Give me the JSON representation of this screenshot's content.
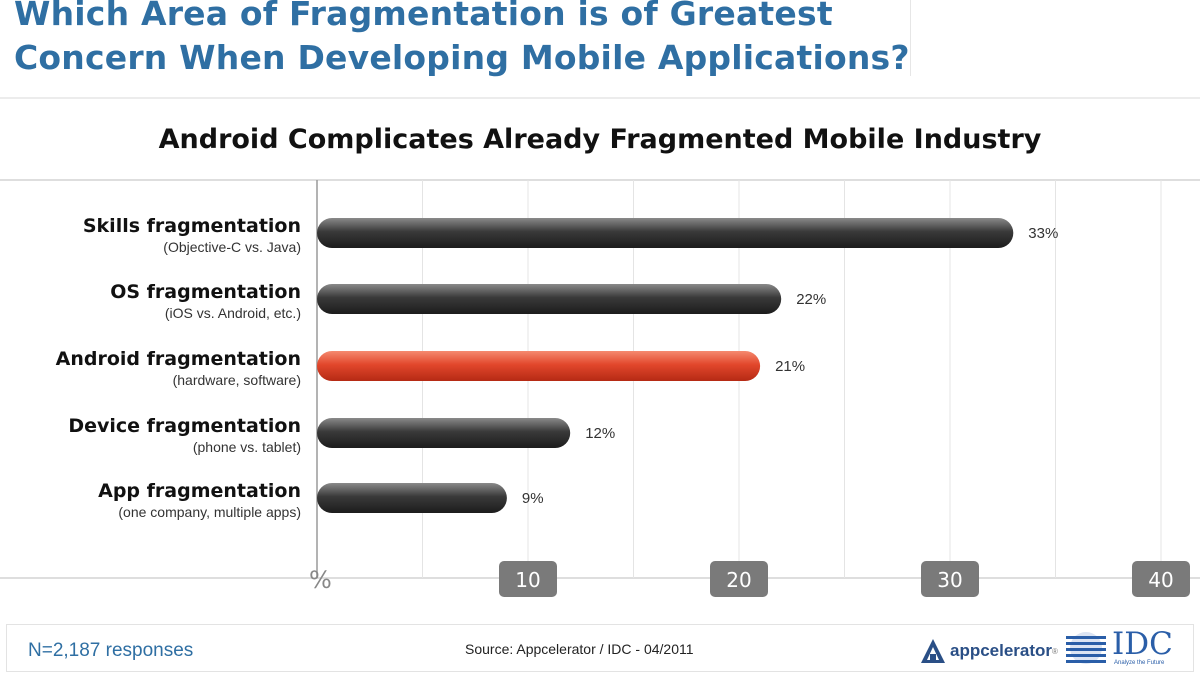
{
  "page": {
    "title_line1": "Which Area of Fragmentation is of Greatest",
    "title_line2": "Concern When Developing Mobile Applications?"
  },
  "chart_data": {
    "type": "bar",
    "orientation": "horizontal",
    "title": "Android Complicates Already Fragmented Mobile Industry",
    "categories": [
      "Skills fragmentation",
      "OS fragmentation",
      "Android fragmentation",
      "Device fragmentation",
      "App fragmentation"
    ],
    "subcategories": [
      "(Objective-C vs. Java)",
      "(iOS vs. Android, etc.)",
      "(hardware, software)",
      "(phone vs. tablet)",
      "(one company, multiple apps)"
    ],
    "values": [
      33,
      22,
      21,
      12,
      9
    ],
    "data_labels": [
      "33%",
      "22%",
      "21%",
      "12%",
      "9%"
    ],
    "highlight_index": 2,
    "xlim": [
      0,
      40
    ],
    "x_ticks": [
      10,
      20,
      30,
      40
    ],
    "x_tick_labels": [
      "10",
      "20",
      "30",
      "40"
    ],
    "x_unit_label": "%",
    "grid": true,
    "colors": {
      "bar": "#3d3d3d",
      "highlight": "#e2472c",
      "tick_badge": "#7a7a7a"
    }
  },
  "footer": {
    "n_label": "N=2,187 responses",
    "source": "Source: Appcelerator / IDC - 04/2011",
    "logos": {
      "appcelerator": {
        "icon": "appcelerator-logo-icon",
        "text": "appcelerator",
        "tm": "®"
      },
      "idc": {
        "icon": "idc-globe-icon",
        "text": "IDC",
        "sub": "Analyze the Future"
      }
    }
  }
}
